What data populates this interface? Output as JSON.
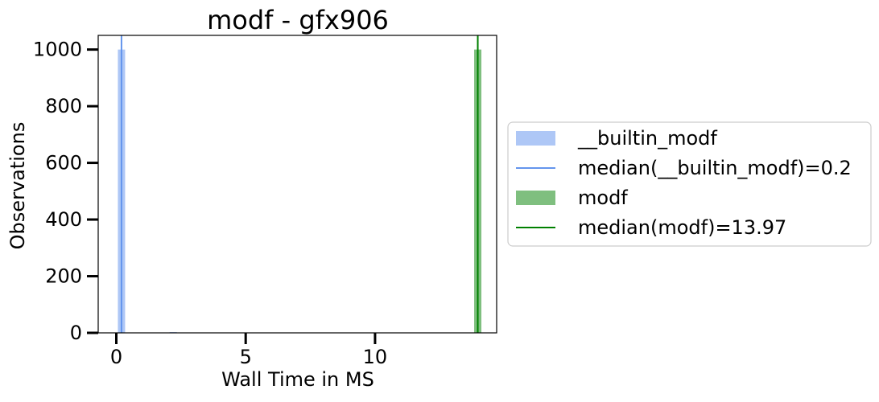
{
  "chart_data": {
    "type": "bar",
    "title": "modf - gfx906",
    "xlabel": "Wall Time in MS",
    "ylabel": "Observations",
    "xlim": [
      -0.7,
      14.7
    ],
    "ylim": [
      0,
      1050
    ],
    "xticks": [
      0,
      5,
      10
    ],
    "yticks": [
      0,
      200,
      400,
      600,
      800,
      1000
    ],
    "grid": false,
    "legend_position": "outside-right",
    "bin_width": 0.28,
    "series": [
      {
        "name": "__builtin_modf",
        "color": "#aec7f6",
        "bars": [
          {
            "x": 0.2,
            "count": 1000
          },
          {
            "x": 2.2,
            "count": 1
          }
        ]
      },
      {
        "name": "modf",
        "color": "#7fbf7f",
        "bars": [
          {
            "x": 13.97,
            "count": 1000
          }
        ]
      }
    ],
    "medians": [
      {
        "name": "median(__builtin_modf)=0.2",
        "value": 0.2,
        "color": "#6495ed"
      },
      {
        "name": "median(modf)=13.97",
        "value": 13.97,
        "color": "#008000"
      }
    ],
    "legend": [
      {
        "label": "__builtin_modf",
        "kind": "patch",
        "color": "#aec7f6"
      },
      {
        "label": "median(__builtin_modf)=0.2",
        "kind": "line",
        "color": "#6495ed"
      },
      {
        "label": "modf",
        "kind": "patch",
        "color": "#7fbf7f"
      },
      {
        "label": "median(modf)=13.97",
        "kind": "line",
        "color": "#008000"
      }
    ]
  }
}
